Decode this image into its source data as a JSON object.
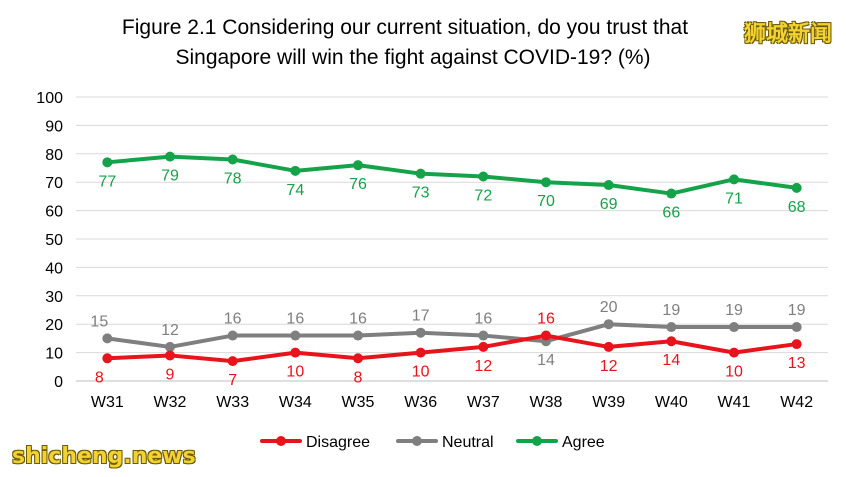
{
  "chart_data": {
    "type": "line",
    "title_lines": [
      "Figure 2.1 Considering our current situation, do you trust that",
      "Singapore will win the fight against COVID-19? (%)"
    ],
    "categories": [
      "W31",
      "W32",
      "W33",
      "W34",
      "W35",
      "W36",
      "W37",
      "W38",
      "W39",
      "W40",
      "W41",
      "W42"
    ],
    "series": [
      {
        "name": "Disagree",
        "color": "#e8141c",
        "values": [
          8,
          9,
          7,
          10,
          8,
          10,
          12,
          16,
          12,
          14,
          10,
          13
        ]
      },
      {
        "name": "Neutral",
        "color": "#7f7f7f",
        "values": [
          15,
          12,
          16,
          16,
          16,
          17,
          16,
          14,
          20,
          19,
          19,
          19
        ]
      },
      {
        "name": "Agree",
        "color": "#15a34a",
        "values": [
          77,
          79,
          78,
          74,
          76,
          73,
          72,
          70,
          69,
          66,
          71,
          68
        ]
      }
    ],
    "ylim": [
      0,
      100
    ],
    "yticks": [
      0,
      10,
      20,
      30,
      40,
      50,
      60,
      70,
      80,
      90,
      100
    ],
    "grid": true,
    "legend_position": "bottom"
  },
  "watermarks": {
    "top_right": "狮城新闻",
    "bottom_left": "shicheng.news"
  }
}
